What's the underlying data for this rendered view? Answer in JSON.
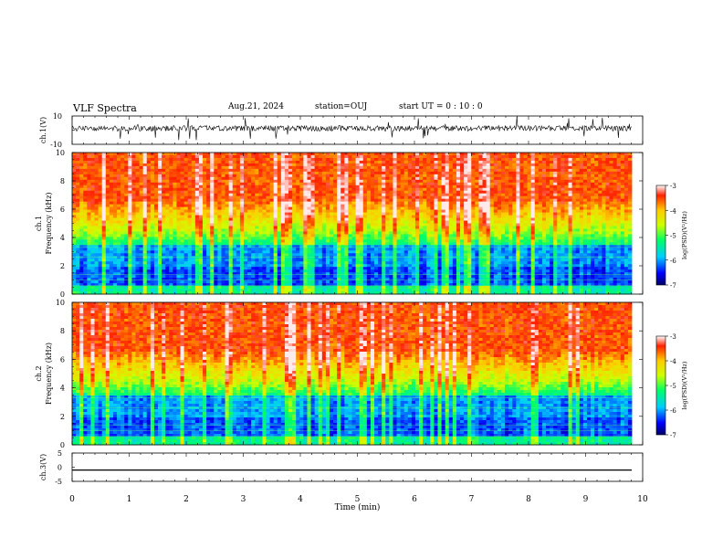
{
  "header": {
    "title": "VLF Spectra",
    "date": "Aug.21, 2024",
    "station": "station=OUJ",
    "start": "start UT =  0 : 10 : 0"
  },
  "chart_data": [
    {
      "type": "line",
      "ylabel": "ch.1(V)",
      "ylim": [
        -10,
        10
      ],
      "yticks": [
        "10",
        "-10"
      ],
      "xlim": [
        0,
        10
      ],
      "note": "noisy waveform centered near 0"
    },
    {
      "type": "heatmap",
      "ylabel": "ch.1\nFrequency (kHz)",
      "ylim": [
        0,
        10
      ],
      "yticks": [
        "0",
        "2",
        "4",
        "6",
        "8",
        "10"
      ],
      "xlim": [
        0,
        10
      ],
      "colorbar": {
        "label": "log(PSD)(V²/Hz)",
        "range": [
          -7,
          -3
        ],
        "ticks": [
          "-3",
          "-4",
          "-5",
          "-6",
          "-7"
        ]
      }
    },
    {
      "type": "heatmap",
      "ylabel": "ch.2\nFrequency (kHz)",
      "ylim": [
        0,
        10
      ],
      "yticks": [
        "0",
        "2",
        "4",
        "6",
        "8",
        "10"
      ],
      "xlim": [
        0,
        10
      ],
      "colorbar": {
        "label": "log(PSD)(V²/Hz)",
        "range": [
          -7,
          -3
        ],
        "ticks": [
          "-3",
          "-4",
          "-5",
          "-6",
          "-7"
        ]
      }
    },
    {
      "type": "line",
      "ylabel": "ch.3(V)",
      "ylim": [
        -5,
        5
      ],
      "yticks": [
        "5",
        "0",
        "-5"
      ],
      "y": -1,
      "xlim": [
        0,
        10
      ],
      "xlabel": "Time (min)",
      "xticks": [
        "0",
        "1",
        "2",
        "3",
        "4",
        "5",
        "6",
        "7",
        "8",
        "9",
        "10"
      ]
    }
  ]
}
